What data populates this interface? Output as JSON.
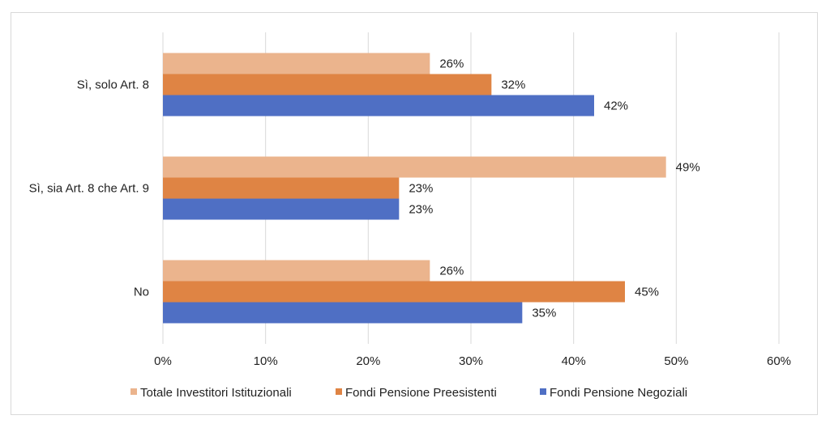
{
  "chart_data": {
    "type": "bar",
    "orientation": "horizontal",
    "categories": [
      "Sì, solo Art. 8",
      "Sì, sia Art. 8 che Art. 9",
      "No"
    ],
    "series": [
      {
        "name": "Totale Investitori Istituzionali",
        "color": "#EBB48D",
        "values": [
          26,
          49,
          26
        ],
        "labels": [
          "26%",
          "49%",
          "26%"
        ]
      },
      {
        "name": "Fondi Pensione Preesistenti",
        "color": "#DF8444",
        "values": [
          32,
          23,
          45
        ],
        "labels": [
          "32%",
          "23%",
          "45%"
        ]
      },
      {
        "name": "Fondi Pensione Negoziali",
        "color": "#4F6FC4",
        "values": [
          42,
          23,
          35
        ],
        "labels": [
          "42%",
          "23%",
          "35%"
        ]
      }
    ],
    "xlim": [
      0,
      60
    ],
    "xticks": [
      0,
      10,
      20,
      30,
      40,
      50,
      60
    ],
    "xtick_labels": [
      "0%",
      "10%",
      "20%",
      "30%",
      "40%",
      "50%",
      "60%"
    ],
    "grid": true,
    "legend_position": "bottom"
  }
}
